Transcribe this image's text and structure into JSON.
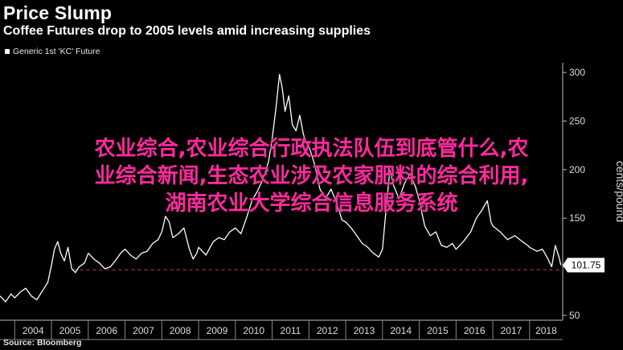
{
  "header": {
    "title": "Price Slump",
    "subtitle": "Coffee Futures drop to 2005 levels amid increasing supplies"
  },
  "legend": {
    "label": "Generic 1st 'KC' Future"
  },
  "source": "Source: Bloomberg",
  "overlay": {
    "line1": "农业综合,农业综合行政执法队伍到底管什么,农",
    "line2": "业综合新闻,生态农业涉及农家肥料的综合利用,",
    "line3": "湖南农业大学综合信息服务系统"
  },
  "colors": {
    "background": "#000000",
    "line": "#ffffff",
    "reference": "#d6336c",
    "overlay": "#ff2a9d"
  },
  "chart_data": {
    "type": "line",
    "title": "Price Slump",
    "subtitle": "Coffee Futures drop to 2005 levels amid increasing supplies",
    "xlabel": "",
    "ylabel": "cents/pound",
    "xlim": [
      2003.6,
      2018.9
    ],
    "ylim": [
      45,
      310
    ],
    "yticks": [
      50,
      100,
      150,
      200,
      250,
      300
    ],
    "xticks": [
      "2004",
      "2005",
      "2006",
      "2007",
      "2008",
      "2009",
      "2010",
      "2011",
      "2012",
      "2013",
      "2014",
      "2015",
      "2016",
      "2017",
      "2018"
    ],
    "last_value_label": "101.75",
    "reference_line": 97,
    "grid": false,
    "legend_position": "top-left",
    "series": [
      {
        "name": "Generic 1st 'KC' Future",
        "points": [
          [
            2003.6,
            70
          ],
          [
            2003.75,
            64
          ],
          [
            2003.9,
            72
          ],
          [
            2004.0,
            68
          ],
          [
            2004.15,
            74
          ],
          [
            2004.3,
            78
          ],
          [
            2004.45,
            70
          ],
          [
            2004.6,
            66
          ],
          [
            2004.75,
            75
          ],
          [
            2004.9,
            84
          ],
          [
            2005.0,
            102
          ],
          [
            2005.08,
            118
          ],
          [
            2005.17,
            126
          ],
          [
            2005.25,
            114
          ],
          [
            2005.35,
            106
          ],
          [
            2005.45,
            120
          ],
          [
            2005.55,
            98
          ],
          [
            2005.65,
            94
          ],
          [
            2005.75,
            100
          ],
          [
            2005.9,
            104
          ],
          [
            2006.0,
            114
          ],
          [
            2006.15,
            108
          ],
          [
            2006.3,
            104
          ],
          [
            2006.45,
            98
          ],
          [
            2006.6,
            100
          ],
          [
            2006.75,
            107
          ],
          [
            2006.9,
            115
          ],
          [
            2007.0,
            118
          ],
          [
            2007.15,
            112
          ],
          [
            2007.3,
            108
          ],
          [
            2007.45,
            114
          ],
          [
            2007.6,
            116
          ],
          [
            2007.75,
            124
          ],
          [
            2007.9,
            128
          ],
          [
            2008.0,
            136
          ],
          [
            2008.1,
            152
          ],
          [
            2008.2,
            146
          ],
          [
            2008.3,
            130
          ],
          [
            2008.45,
            134
          ],
          [
            2008.6,
            140
          ],
          [
            2008.75,
            118
          ],
          [
            2008.85,
            108
          ],
          [
            2008.95,
            114
          ],
          [
            2009.0,
            120
          ],
          [
            2009.2,
            112
          ],
          [
            2009.4,
            126
          ],
          [
            2009.55,
            130
          ],
          [
            2009.7,
            128
          ],
          [
            2009.85,
            136
          ],
          [
            2010.0,
            140
          ],
          [
            2010.15,
            134
          ],
          [
            2010.3,
            150
          ],
          [
            2010.45,
            168
          ],
          [
            2010.6,
            178
          ],
          [
            2010.75,
            190
          ],
          [
            2010.9,
            208
          ],
          [
            2011.0,
            232
          ],
          [
            2011.1,
            262
          ],
          [
            2011.2,
            298
          ],
          [
            2011.27,
            285
          ],
          [
            2011.35,
            260
          ],
          [
            2011.45,
            276
          ],
          [
            2011.55,
            246
          ],
          [
            2011.65,
            240
          ],
          [
            2011.75,
            256
          ],
          [
            2011.85,
            236
          ],
          [
            2011.95,
            226
          ],
          [
            2012.0,
            224
          ],
          [
            2012.15,
            206
          ],
          [
            2012.3,
            180
          ],
          [
            2012.45,
            170
          ],
          [
            2012.6,
            180
          ],
          [
            2012.75,
            166
          ],
          [
            2012.9,
            148
          ],
          [
            2013.0,
            146
          ],
          [
            2013.15,
            140
          ],
          [
            2013.3,
            132
          ],
          [
            2013.45,
            124
          ],
          [
            2013.6,
            120
          ],
          [
            2013.75,
            114
          ],
          [
            2013.9,
            110
          ],
          [
            2014.0,
            118
          ],
          [
            2014.1,
            160
          ],
          [
            2014.2,
            200
          ],
          [
            2014.3,
            184
          ],
          [
            2014.45,
            170
          ],
          [
            2014.6,
            186
          ],
          [
            2014.75,
            196
          ],
          [
            2014.9,
            182
          ],
          [
            2015.0,
            168
          ],
          [
            2015.15,
            142
          ],
          [
            2015.3,
            132
          ],
          [
            2015.45,
            136
          ],
          [
            2015.6,
            122
          ],
          [
            2015.75,
            120
          ],
          [
            2015.9,
            124
          ],
          [
            2016.0,
            118
          ],
          [
            2016.2,
            126
          ],
          [
            2016.4,
            136
          ],
          [
            2016.55,
            150
          ],
          [
            2016.7,
            158
          ],
          [
            2016.85,
            168
          ],
          [
            2016.95,
            146
          ],
          [
            2017.0,
            142
          ],
          [
            2017.2,
            136
          ],
          [
            2017.4,
            128
          ],
          [
            2017.6,
            132
          ],
          [
            2017.8,
            126
          ],
          [
            2017.95,
            122
          ],
          [
            2018.0,
            120
          ],
          [
            2018.2,
            116
          ],
          [
            2018.35,
            118
          ],
          [
            2018.5,
            108
          ],
          [
            2018.6,
            100
          ],
          [
            2018.7,
            122
          ],
          [
            2018.8,
            110
          ],
          [
            2018.85,
            101.75
          ]
        ]
      }
    ]
  }
}
